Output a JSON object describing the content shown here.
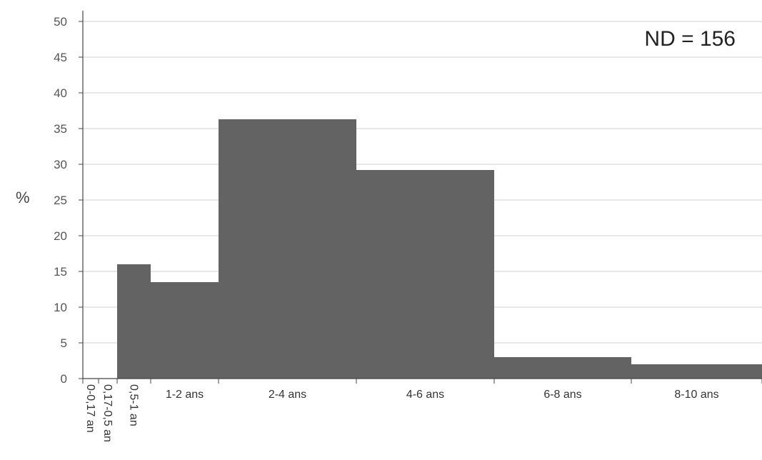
{
  "chart_data": {
    "type": "bar",
    "title": "",
    "xlabel": "",
    "ylabel": "%",
    "ylim": [
      0,
      50
    ],
    "yticks": [
      0,
      5,
      10,
      15,
      20,
      25,
      30,
      35,
      40,
      45,
      50
    ],
    "grid": true,
    "annotation": "ND = 156",
    "bar_color": "#636363",
    "grid_color": "#cfcfcf",
    "categories": [
      "0-0,17 an",
      "0,17-0,5 an",
      "0,5-1 an",
      "1-2 ans",
      "2-4 ans",
      "4-6 ans",
      "6-8 ans",
      "8-10 ans"
    ],
    "bin_edges_years": [
      0,
      0.17,
      0.5,
      1,
      2,
      4,
      6,
      8,
      10
    ],
    "values": [
      0,
      0,
      16,
      13.5,
      36.3,
      29.2,
      3,
      2
    ]
  }
}
